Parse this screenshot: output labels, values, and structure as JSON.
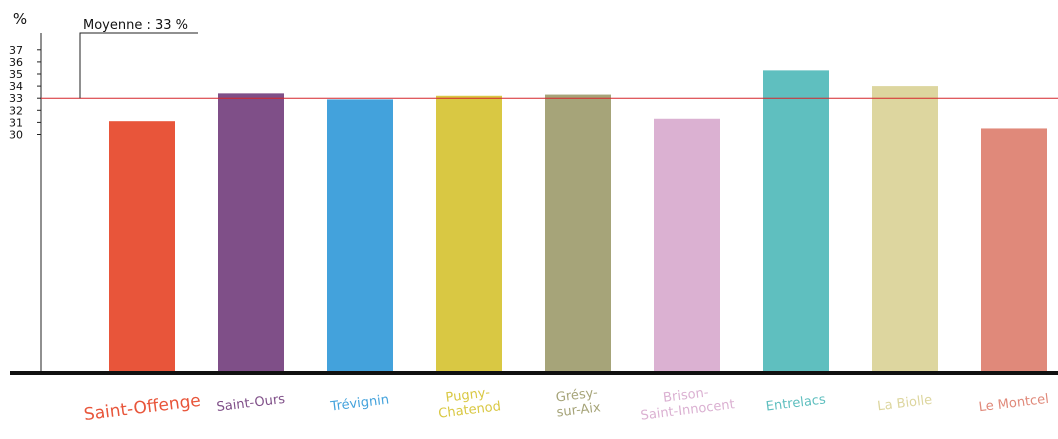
{
  "chart_data": {
    "type": "bar",
    "unit_label": "%",
    "average": {
      "label": "Moyenne : 33 %",
      "value": 33,
      "color": "#d6262b"
    },
    "yticks": [
      {
        "label": "37",
        "value": 37
      },
      {
        "label": "36",
        "value": 36
      },
      {
        "label": "35",
        "value": 35
      },
      {
        "label": "34",
        "value": 34
      },
      {
        "label": "33",
        "value": 33,
        "color": "#d6262b"
      },
      {
        "label": "32",
        "value": 32
      },
      {
        "label": "31",
        "value": 31
      },
      {
        "label": "30",
        "value": 30
      }
    ],
    "categories": [
      {
        "lines": [
          "Saint-Offenge"
        ],
        "value": 31.1,
        "color": "#e8553a"
      },
      {
        "lines": [
          "Saint-Ours"
        ],
        "value": 33.4,
        "color": "#7f4f88"
      },
      {
        "lines": [
          "Trévignin"
        ],
        "value": 32.9,
        "color": "#43a2dc"
      },
      {
        "lines": [
          "Pugny-",
          "Chatenod"
        ],
        "value": 33.2,
        "color": "#d9c843"
      },
      {
        "lines": [
          "Grésy-",
          "sur-Aix"
        ],
        "value": 33.3,
        "color": "#a6a479"
      },
      {
        "lines": [
          "Brison-",
          "Saint-Innocent"
        ],
        "value": 31.3,
        "color": "#dbb1d2"
      },
      {
        "lines": [
          "Entrelacs"
        ],
        "value": 35.3,
        "color": "#5fbfbf"
      },
      {
        "lines": [
          "La Biolle"
        ],
        "value": 34.0,
        "color": "#ddd69f"
      },
      {
        "lines": [
          "Le Montcel"
        ],
        "value": 30.5,
        "color": "#e0897a"
      }
    ]
  }
}
